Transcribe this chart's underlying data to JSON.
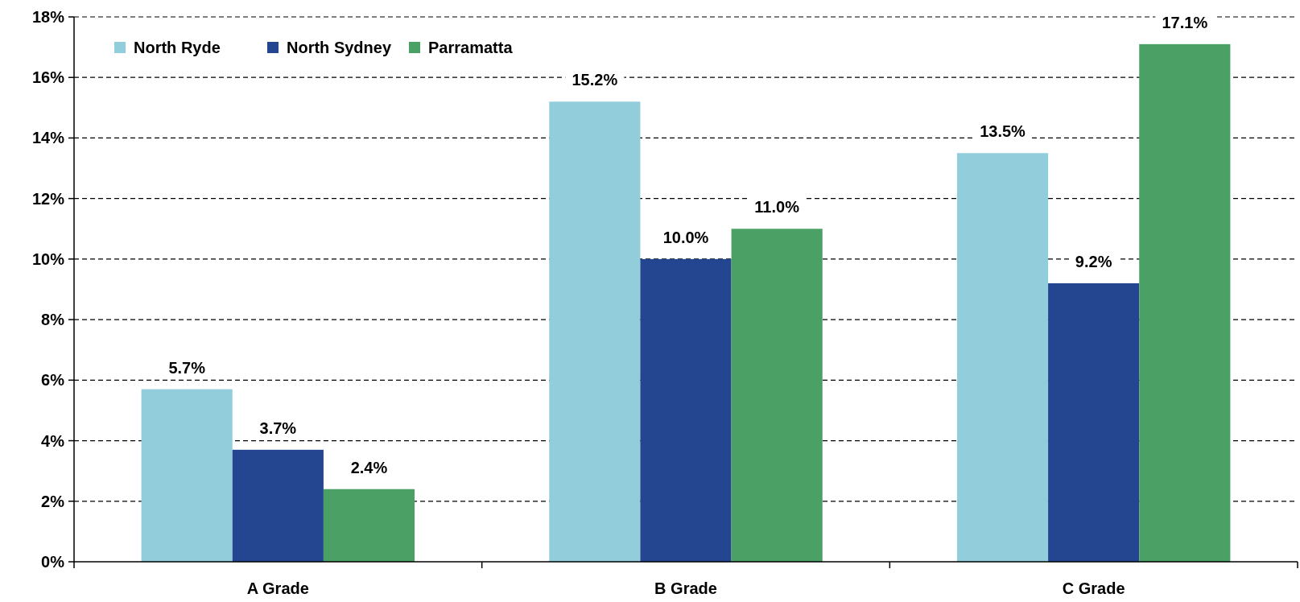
{
  "chart_data": {
    "type": "bar",
    "categories": [
      "A Grade",
      "B Grade",
      "C Grade"
    ],
    "series": [
      {
        "name": "North Ryde",
        "color": "#92cddc",
        "values": [
          5.7,
          15.2,
          13.5
        ],
        "value_labels": [
          "5.7%",
          "15.2%",
          "13.5%"
        ]
      },
      {
        "name": "North Sydney",
        "color": "#244590",
        "values": [
          3.7,
          10.0,
          9.2
        ],
        "value_labels": [
          "3.7%",
          "10.0%",
          "9.2%"
        ]
      },
      {
        "name": "Parramatta",
        "color": "#4aa065",
        "values": [
          2.4,
          11.0,
          17.1
        ],
        "value_labels": [
          "2.4%",
          "11.0%",
          "17.1%"
        ]
      }
    ],
    "ylim": [
      0,
      18
    ],
    "yticks": [
      {
        "value": 0,
        "label": "0%"
      },
      {
        "value": 2,
        "label": "2%"
      },
      {
        "value": 4,
        "label": "4%"
      },
      {
        "value": 6,
        "label": "6%"
      },
      {
        "value": 8,
        "label": "8%"
      },
      {
        "value": 10,
        "label": "10%"
      },
      {
        "value": 12,
        "label": "12%"
      },
      {
        "value": 14,
        "label": "14%"
      },
      {
        "value": 16,
        "label": "16%"
      },
      {
        "value": 18,
        "label": "18%"
      }
    ],
    "grid": "y",
    "legend": "top left"
  }
}
